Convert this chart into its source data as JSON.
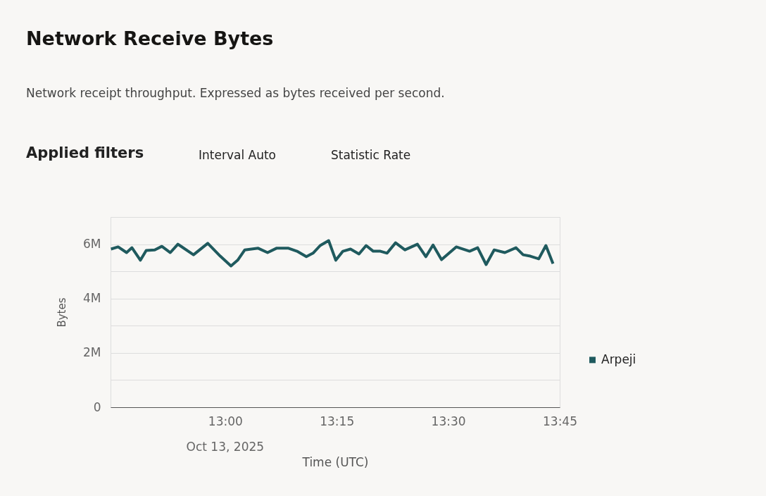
{
  "chart_data": {
    "type": "line",
    "title": "Network Receive Bytes",
    "subtitle": "Network receipt throughput. Expressed as bytes received per second.",
    "xlabel": "Time (UTC)",
    "ylabel": "Bytes",
    "annotations": [
      "Oct 13, 2025",
      "Applied filters",
      "Interval Auto",
      "Statistic Rate"
    ],
    "x": [
      12.744,
      12.76,
      12.779,
      12.791,
      12.81,
      12.823,
      12.842,
      12.858,
      12.877,
      12.894,
      12.929,
      12.961,
      12.989,
      13.013,
      13.028,
      13.044,
      13.074,
      13.095,
      13.115,
      13.142,
      13.161,
      13.182,
      13.197,
      13.213,
      13.232,
      13.248,
      13.264,
      13.281,
      13.3,
      13.316,
      13.332,
      13.348,
      13.363,
      13.382,
      13.403,
      13.431,
      13.45,
      13.466,
      13.485,
      13.518,
      13.548,
      13.566,
      13.585,
      13.603,
      13.627,
      13.652,
      13.668,
      13.684,
      13.703,
      13.719,
      13.735
    ],
    "series": [
      {
        "name": "Arpeji",
        "color": "#1f5a5e",
        "values": [
          5820000,
          5900000,
          5690000,
          5870000,
          5410000,
          5770000,
          5790000,
          5920000,
          5690000,
          6000000,
          5610000,
          6030000,
          5560000,
          5200000,
          5410000,
          5790000,
          5850000,
          5690000,
          5850000,
          5850000,
          5740000,
          5540000,
          5670000,
          5950000,
          6130000,
          5410000,
          5740000,
          5820000,
          5640000,
          5950000,
          5740000,
          5740000,
          5670000,
          6050000,
          5790000,
          6000000,
          5540000,
          5970000,
          5430000,
          5900000,
          5740000,
          5870000,
          5250000,
          5790000,
          5690000,
          5870000,
          5610000,
          5560000,
          5460000,
          5950000,
          5280000
        ]
      }
    ],
    "xlim": [
      12.743,
      13.75
    ],
    "xticks": [
      {
        "value": 13,
        "label": "13:00"
      },
      {
        "value": 13.25,
        "label": "13:15"
      },
      {
        "value": 13.5,
        "label": "13:30"
      },
      {
        "value": 13.75,
        "label": "13:45"
      }
    ],
    "ylim": [
      0,
      7000000
    ],
    "yticks": [
      0,
      {
        "value": 1000000,
        "label": null
      },
      {
        "value": 2000000,
        "label": "2M"
      },
      {
        "value": 3000000,
        "label": null
      },
      {
        "value": 4000000,
        "label": "4M"
      },
      {
        "value": 5000000,
        "label": null
      },
      {
        "value": 6000000,
        "label": "6M"
      },
      {
        "value": 7000000,
        "label": null
      }
    ],
    "grid": "y",
    "legend": "right",
    "marker": "none",
    "line_style": "solid"
  }
}
